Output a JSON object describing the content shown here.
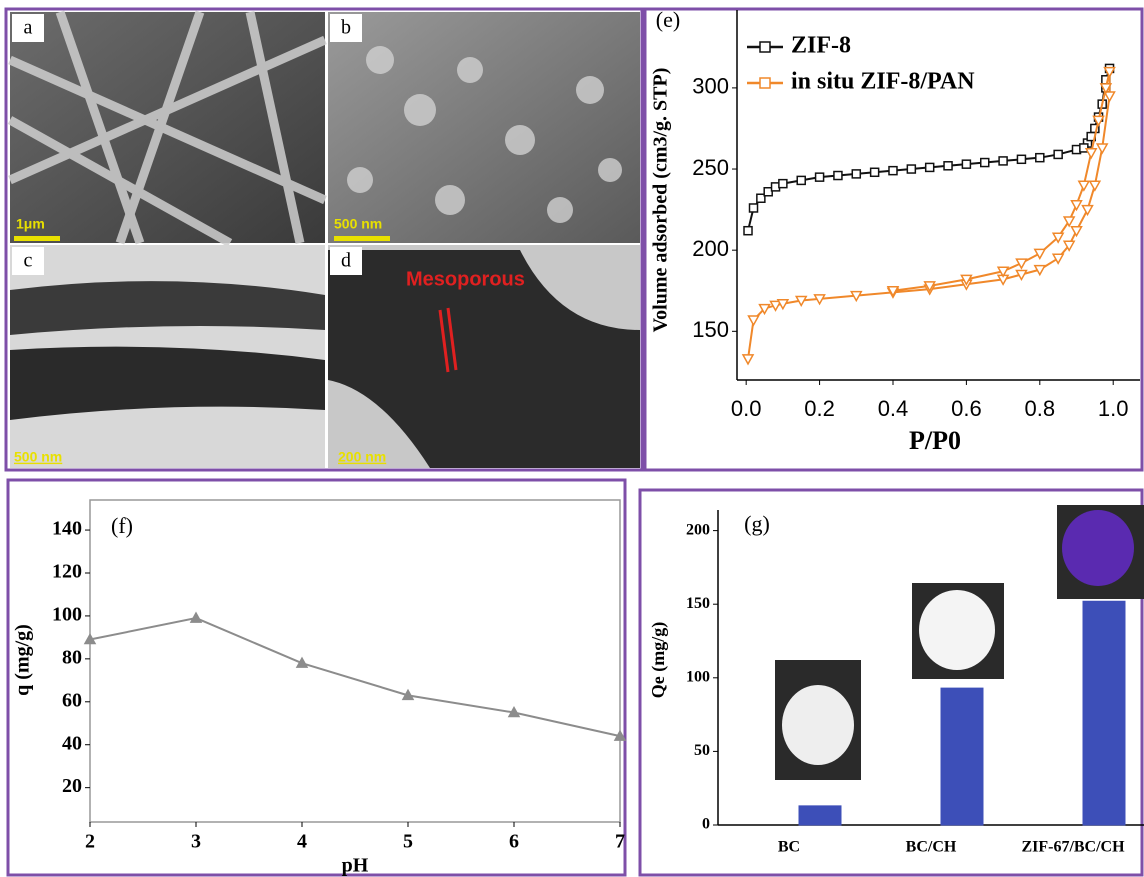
{
  "micrographs": [
    {
      "label": "a",
      "scale": "1μm"
    },
    {
      "label": "b",
      "scale": "500 nm"
    },
    {
      "label": "c",
      "scale": "500 nm"
    },
    {
      "label": "d",
      "scale": "200 nm",
      "annotation": "Mesoporous"
    }
  ],
  "chart_data": [
    {
      "type": "line",
      "title": "(e)",
      "x_label": "P/P0",
      "y_label": "Volume adsorbed (cm3/g. STP)",
      "xlim": [
        -0.025,
        1.073
      ],
      "ylim": [
        120,
        348
      ],
      "xticks": [
        {
          "value": 0,
          "label": "0.0"
        },
        0.2,
        0.4,
        0.6,
        0.8,
        {
          "value": 1,
          "label": "1.0"
        }
      ],
      "yticks": [
        150,
        200,
        250,
        300
      ],
      "legend": "upper left",
      "series": [
        {
          "name": "ZIF-8",
          "color": "#111111",
          "marker": "square",
          "x": [
            0.005,
            0.02,
            0.04,
            0.06,
            0.08,
            0.1,
            0.15,
            0.2,
            0.25,
            0.3,
            0.35,
            0.4,
            0.45,
            0.5,
            0.55,
            0.6,
            0.65,
            0.7,
            0.75,
            0.8,
            0.85,
            0.9,
            0.93,
            0.95,
            0.97,
            0.98,
            0.99,
            0.98,
            0.96,
            0.94,
            0.92
          ],
          "values": [
            212,
            226,
            232,
            236,
            239,
            241,
            243,
            245,
            246,
            247,
            248,
            249,
            250,
            251,
            252,
            253,
            254,
            255,
            256,
            257,
            259,
            262,
            266,
            275,
            290,
            305,
            312,
            300,
            282,
            270,
            263
          ]
        },
        {
          "name": "in situ ZIF-8/PAN",
          "color": "#f0882a",
          "marker": "triangle-down",
          "x": [
            0.005,
            0.02,
            0.05,
            0.08,
            0.1,
            0.15,
            0.2,
            0.3,
            0.4,
            0.5,
            0.6,
            0.7,
            0.75,
            0.8,
            0.85,
            0.88,
            0.9,
            0.93,
            0.95,
            0.97,
            0.99,
            0.99,
            0.98,
            0.96,
            0.94,
            0.92,
            0.9,
            0.88,
            0.85,
            0.8,
            0.75,
            0.7,
            0.6,
            0.5,
            0.4
          ],
          "values": [
            133,
            157,
            164,
            166,
            167,
            169,
            170,
            172,
            174,
            176,
            179,
            182,
            185,
            188,
            195,
            203,
            212,
            225,
            240,
            263,
            295,
            310,
            300,
            280,
            260,
            240,
            228,
            218,
            208,
            198,
            192,
            187,
            182,
            178,
            175
          ]
        }
      ]
    },
    {
      "type": "line",
      "title": "(f)",
      "x_label": "pH",
      "y_label": "q (mg/g)",
      "xlim": [
        2,
        7
      ],
      "ylim": [
        4,
        154
      ],
      "xticks": [
        2,
        3,
        4,
        5,
        6,
        7
      ],
      "yticks": [
        20,
        40,
        60,
        80,
        100,
        120,
        140
      ],
      "series": [
        {
          "color": "#8c8c8c",
          "marker": "triangle-up",
          "x": [
            2,
            3,
            4,
            5,
            6,
            7
          ],
          "values": [
            89,
            99,
            78,
            63,
            55,
            44
          ]
        }
      ]
    },
    {
      "type": "bar",
      "title": "(g)",
      "y_label": "Qe (mg/g)",
      "categories": [
        "BC",
        "BC/CH",
        "ZIF-67/BC/CH"
      ],
      "ylim": [
        0,
        214
      ],
      "yticks": [
        0,
        50,
        100,
        150,
        200
      ],
      "series": [
        {
          "color": "#d9302b",
          "values": [
            0,
            0,
            0
          ]
        },
        {
          "color": "#3d4fb8",
          "values": [
            13,
            93,
            152
          ]
        }
      ]
    }
  ]
}
